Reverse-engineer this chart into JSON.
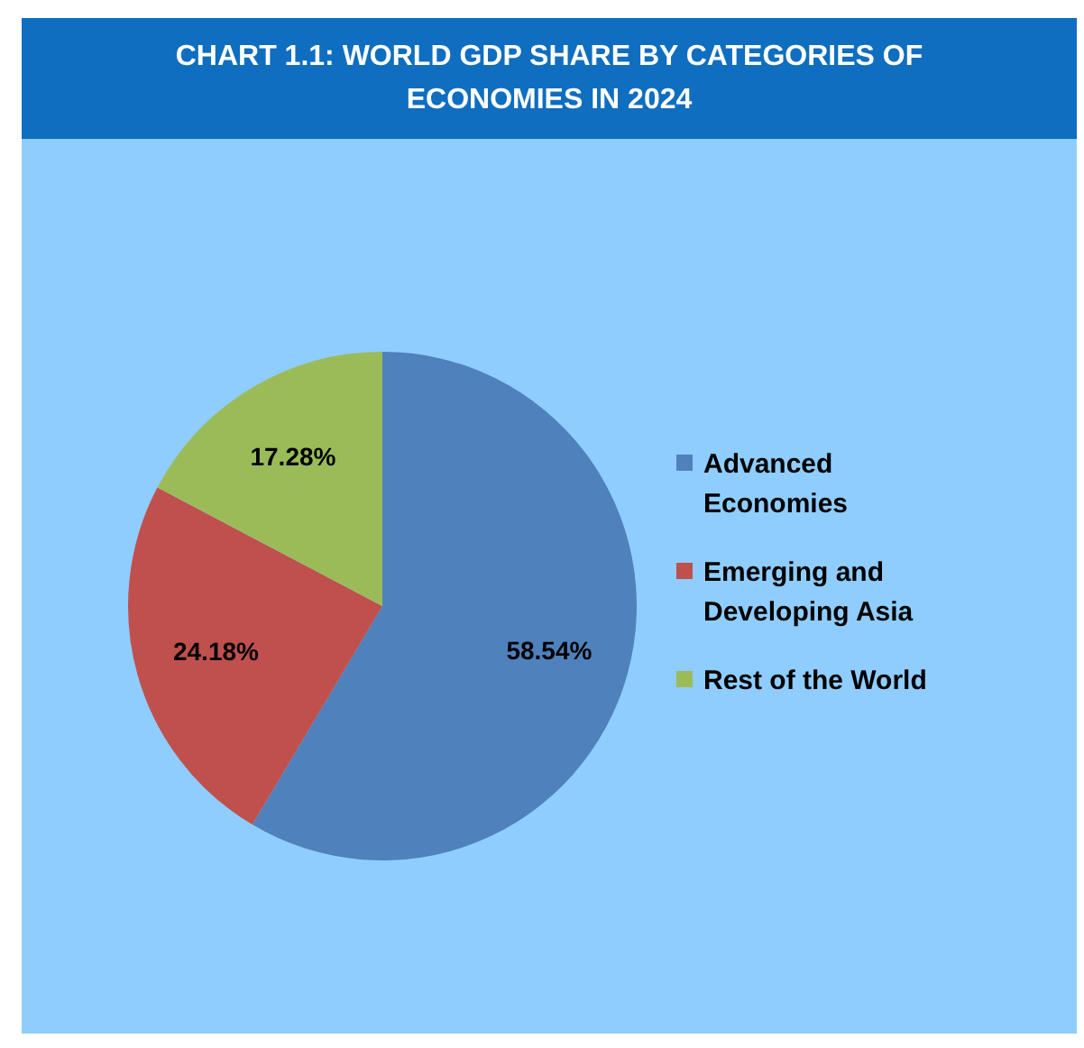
{
  "chart_data": {
    "type": "pie",
    "title": "CHART 1.1: WORLD GDP SHARE BY CATEGORIES OF ECONOMIES IN 2024",
    "categories": [
      "Advanced Economies",
      "Emerging and Developing Asia",
      "Rest of the World"
    ],
    "values": [
      58.54,
      24.18,
      17.28
    ],
    "colors": [
      "#4f81bd",
      "#c0504d",
      "#9bbb59"
    ],
    "value_labels": [
      "58.54%",
      "24.18%",
      "17.28%"
    ],
    "legend": "right"
  }
}
